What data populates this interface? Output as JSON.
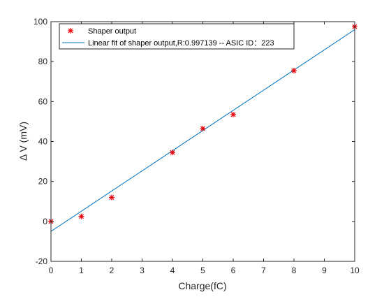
{
  "chart_data": {
    "type": "scatter",
    "title": "",
    "xlabel": "Charge(fC)",
    "ylabel": "Δ V (mV)",
    "xlim": [
      0,
      10
    ],
    "ylim": [
      -20,
      100
    ],
    "xticks": [
      0,
      1,
      2,
      3,
      4,
      5,
      6,
      7,
      8,
      9,
      10
    ],
    "yticks": [
      -20,
      0,
      20,
      40,
      60,
      80,
      100
    ],
    "grid": false,
    "legend_position": "top-left",
    "series": [
      {
        "name": "Shaper output",
        "kind": "scatter",
        "marker": "*",
        "color": "#e8000b",
        "x": [
          0,
          1,
          2,
          4,
          5,
          6,
          8,
          10
        ],
        "y": [
          0,
          2.5,
          12,
          34.5,
          46.5,
          53.5,
          75.5,
          97.5
        ]
      },
      {
        "name": "Linear fit of shaper output,R:0.997139 -- ASIC ID：223",
        "kind": "line",
        "color": "#0072bd",
        "x": [
          0,
          10
        ],
        "y": [
          -5,
          96
        ]
      }
    ]
  }
}
